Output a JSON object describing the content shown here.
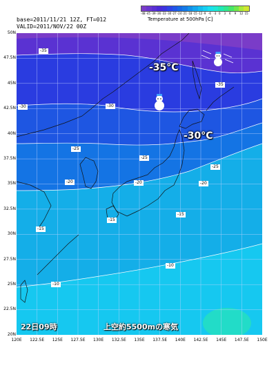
{
  "header": {
    "base_text": "base=2011/11/21 12Z, FT=012",
    "valid_text": "VALID=2011/NOV/22 00Z"
  },
  "legend": {
    "title": "Temperature at 500hPa  [C]",
    "ticks": [
      "-48",
      "-45",
      "-39",
      "-36",
      "-33",
      "-30",
      "-27",
      "-24",
      "-21",
      "-18",
      "-15",
      "-12",
      "-9",
      "-6",
      "-3",
      "0",
      "3",
      "6",
      "9",
      "12",
      "15"
    ],
    "colors": [
      "#7a3cc9",
      "#6a36d0",
      "#5a30d4",
      "#4a2ad8",
      "#3c34e0",
      "#2e44e6",
      "#2156e8",
      "#1768e6",
      "#147ae6",
      "#1290ea",
      "#12a6ee",
      "#14bcf0",
      "#16cff2",
      "#1be0ee",
      "#1ee8d6",
      "#22e8b6",
      "#30e890",
      "#48e66a",
      "#70e84c",
      "#a8ea3c",
      "#d0e830"
    ]
  },
  "map": {
    "lat_labels": [
      "50N",
      "47.5N",
      "45N",
      "42.5N",
      "40N",
      "37.5N",
      "35N",
      "32.5N",
      "30N",
      "27.5N",
      "25N",
      "22.5N",
      "20N"
    ],
    "lon_labels": [
      "120E",
      "122.5E",
      "125E",
      "127.5E",
      "130E",
      "132.5E",
      "135E",
      "137.5E",
      "140E",
      "142.5E",
      "145E",
      "147.5E",
      "150E"
    ],
    "contour_labels": [
      "-35",
      "-35",
      "-35",
      "-30",
      "-30",
      "-30",
      "-30",
      "-25",
      "-25",
      "-25",
      "-20",
      "-20",
      "-20",
      "-20",
      "-15",
      "-15",
      "-15",
      "-10",
      "-10"
    ],
    "big_labels": [
      "-35°C",
      "-30°C"
    ],
    "time_label": "22日09時",
    "caption": "上空約5500mの寒気"
  }
}
